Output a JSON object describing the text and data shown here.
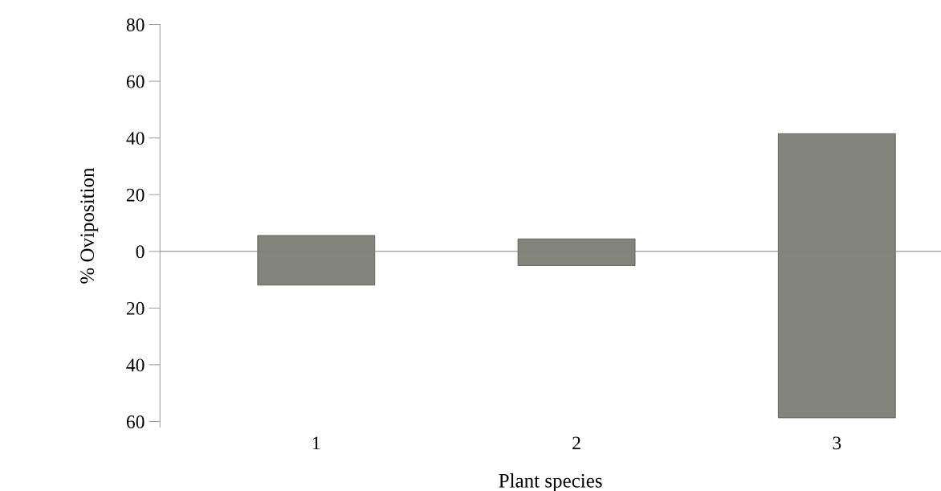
{
  "chart_data": {
    "type": "bar",
    "xlabel": "Plant species",
    "ylabel": "% Oviposition",
    "categories": [
      "1",
      "2",
      "3"
    ],
    "values": [
      17.5,
      9.4,
      100.2
    ],
    "base": [
      -11.9,
      -5.0,
      -58.7
    ],
    "color": "#83857a",
    "ylim": [
      -62,
      80
    ],
    "yticks": [
      {
        "value": -60,
        "label": "60"
      },
      {
        "value": -40,
        "label": "40"
      },
      {
        "value": -20,
        "label": "20"
      },
      0,
      20,
      40,
      60,
      80
    ],
    "ref_lines": [
      {
        "axis": "y",
        "value": 0,
        "label": null,
        "color": "#808080"
      }
    ],
    "grid": false
  }
}
